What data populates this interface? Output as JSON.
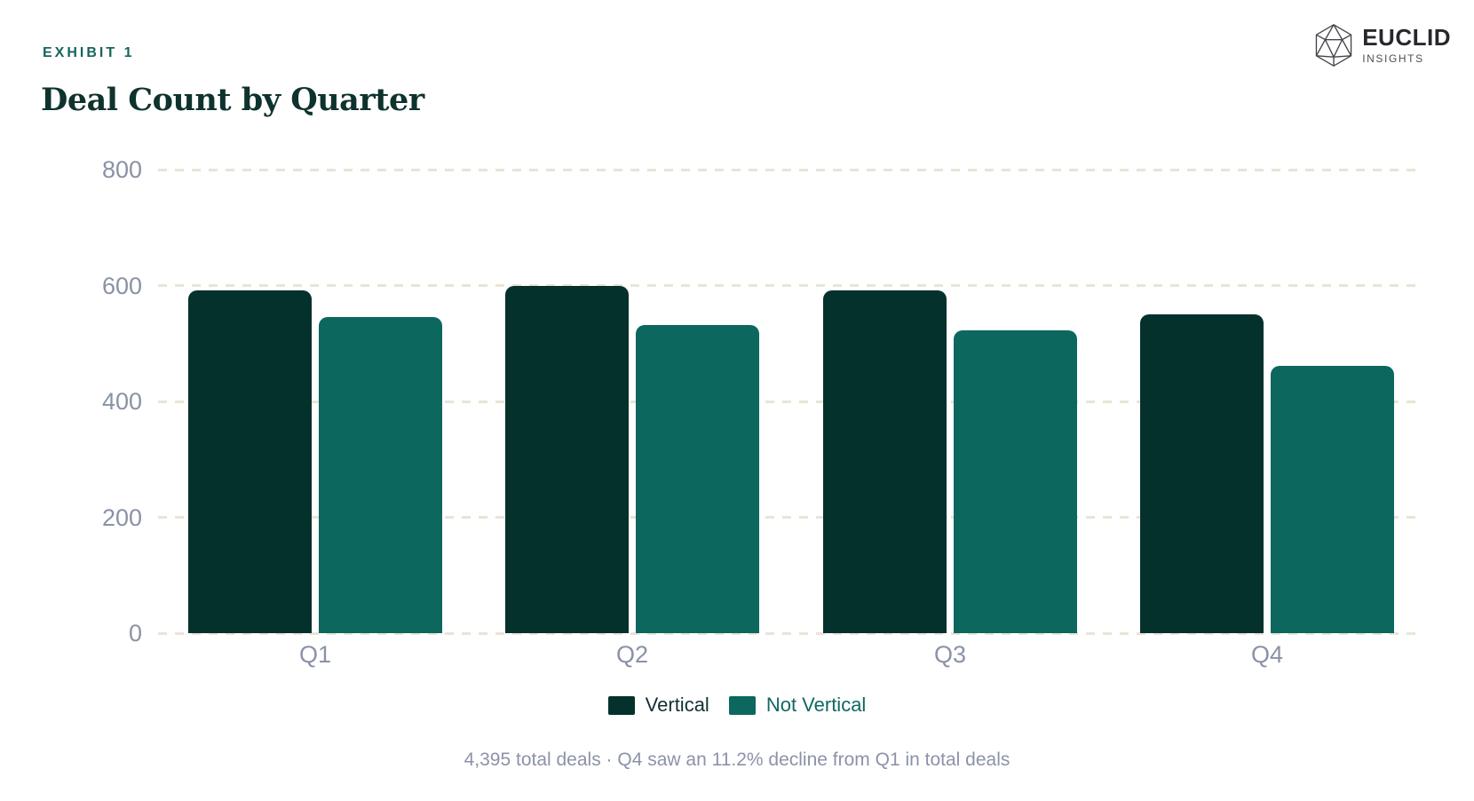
{
  "header": {
    "exhibit_label": "EXHIBIT 1",
    "title": "Deal Count by Quarter",
    "brand": {
      "name": "EUCLID",
      "tagline": "INSIGHTS"
    }
  },
  "chart_data": {
    "type": "bar",
    "title": "Deal Count by Quarter",
    "categories": [
      "Q1",
      "Q2",
      "Q3",
      "Q4"
    ],
    "series": [
      {
        "name": "Vertical",
        "color": "#05312c",
        "values": [
          592,
          600,
          592,
          550
        ]
      },
      {
        "name": "Not Vertical",
        "color": "#0c675f",
        "values": [
          546,
          532,
          522,
          461
        ]
      }
    ],
    "xlabel": "",
    "ylabel": "",
    "ylim": [
      0,
      800
    ],
    "yticks": [
      0,
      200,
      400,
      600,
      800
    ],
    "grid": "horizontal-dashed",
    "legend_position": "bottom",
    "total_deals": "4,395"
  },
  "footnote": "4,395 total deals · Q4 saw an 11.2% decline from Q1 in total deals",
  "colors": {
    "dark_green": "#05312c",
    "accent_teal": "#0c675f",
    "exhibit_label_text": "#17655e",
    "title_text": "#0e332e",
    "axis_label_text": "#8a92a6",
    "gridline": "#e9e4d7",
    "footnote_text": "#8b93a7",
    "legend_vertical_text": "#142f35",
    "legend_not_vertical_text": "#116761",
    "background": "#ffffff"
  }
}
